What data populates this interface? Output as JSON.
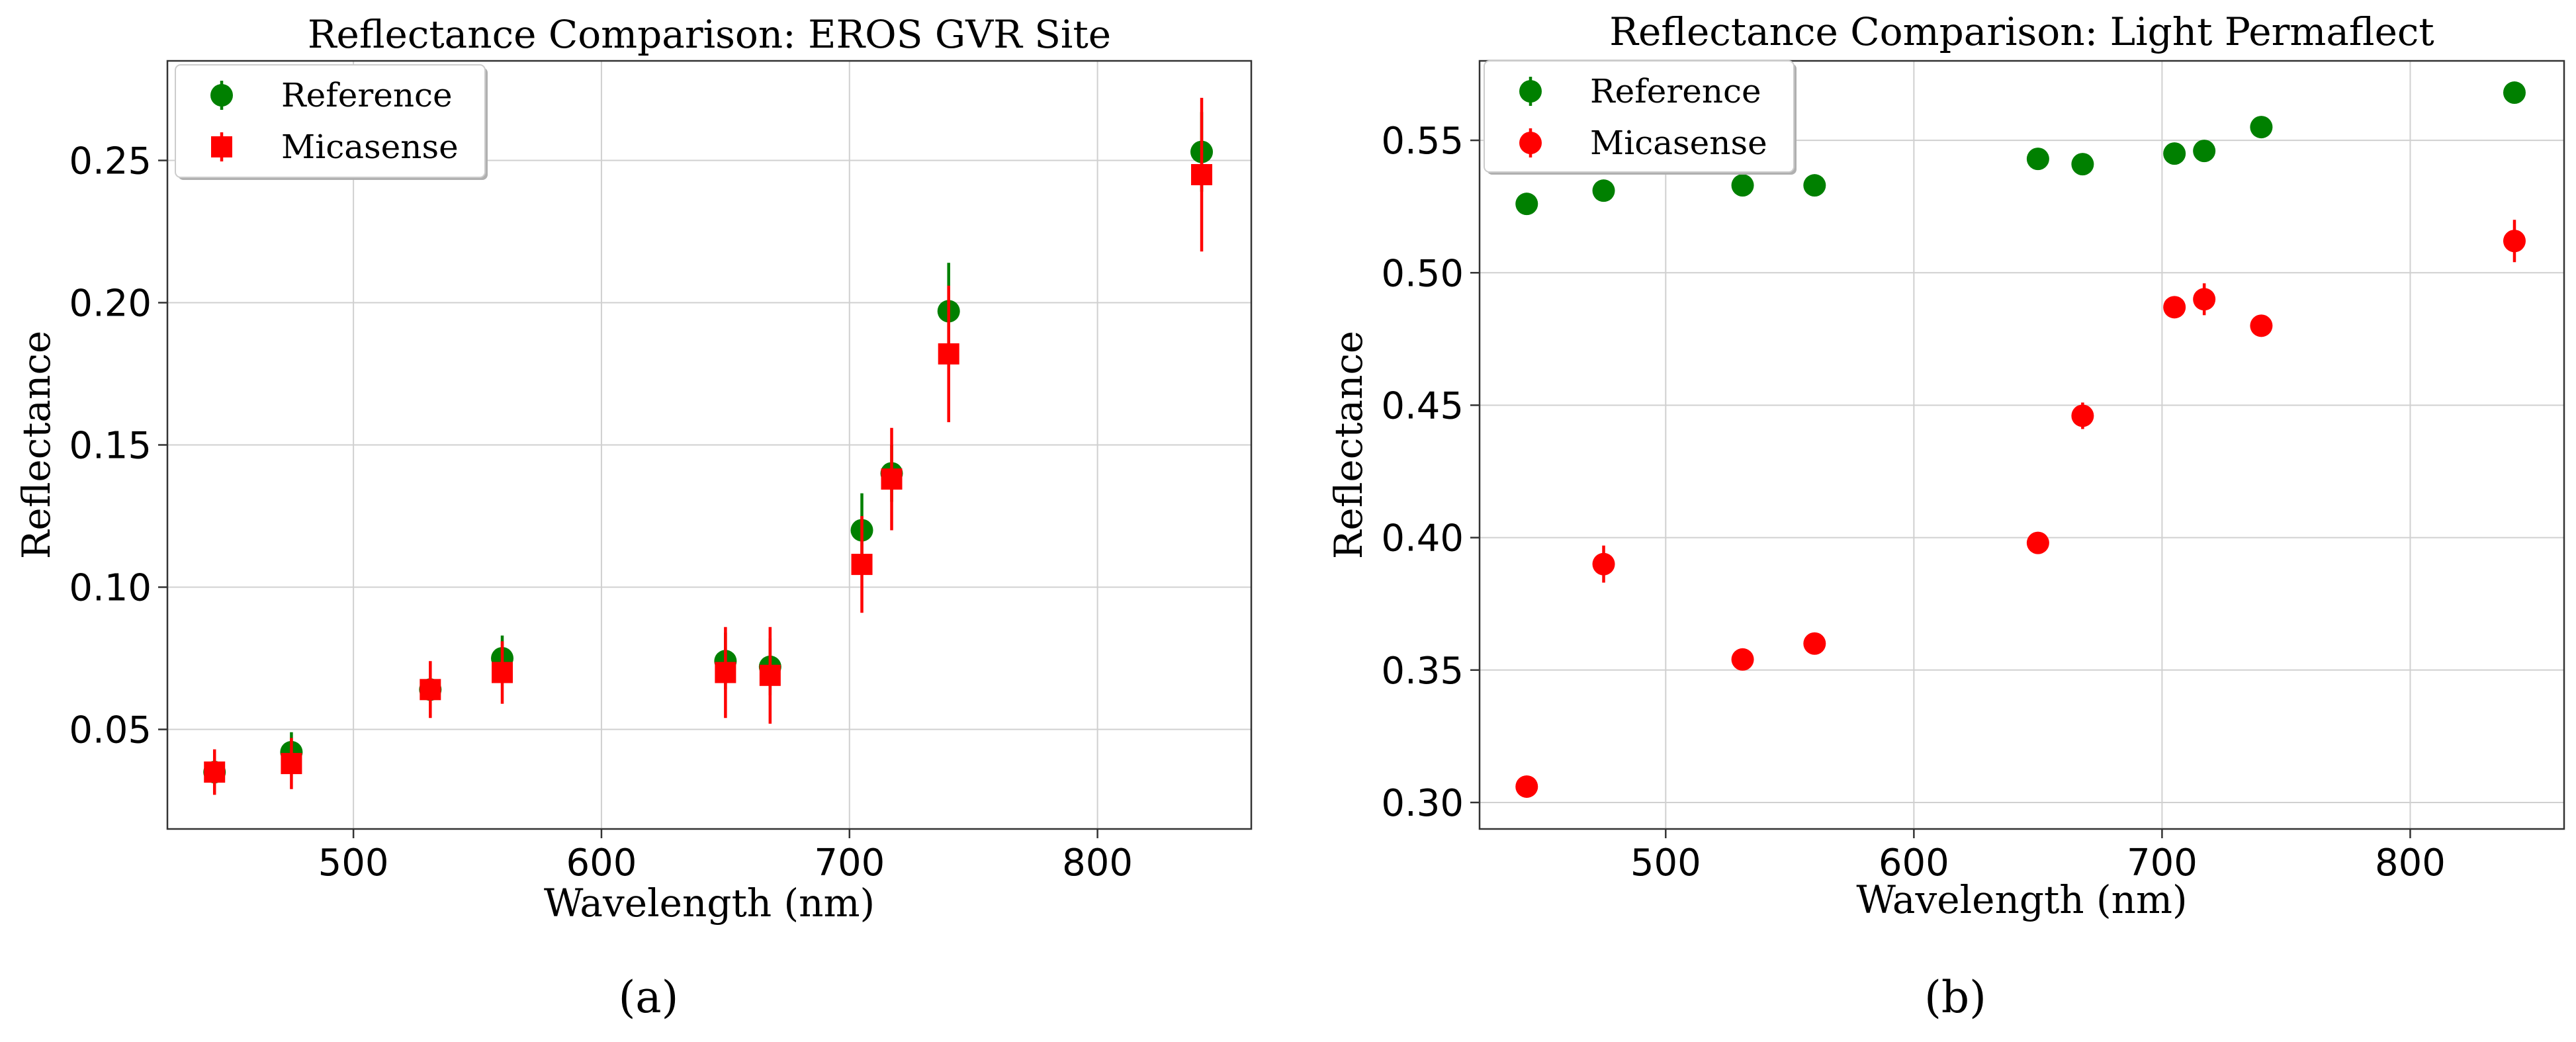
{
  "chart_data": [
    {
      "type": "scatter",
      "title": "Reflectance Comparison: EROS GVR Site",
      "xlabel": "Wavelength (nm)",
      "ylabel": "Reflectance",
      "panel_label": "(a)",
      "xlim": [
        425,
        862
      ],
      "ylim": [
        0.015,
        0.285
      ],
      "xticks": [
        500,
        600,
        700,
        800
      ],
      "xtick_labels": [
        "500",
        "600",
        "700",
        "800"
      ],
      "yticks": [
        0.05,
        0.1,
        0.15,
        0.2,
        0.25
      ],
      "ytick_labels": [
        "0.05",
        "0.10",
        "0.15",
        "0.20",
        "0.25"
      ],
      "grid": true,
      "legend_position": "top-left",
      "series": [
        {
          "name": "Reference",
          "marker": "circle",
          "color": "#008000",
          "x": [
            444,
            475,
            531,
            560,
            650,
            668,
            705,
            717,
            740,
            842
          ],
          "y": [
            0.035,
            0.042,
            0.064,
            0.075,
            0.074,
            0.072,
            0.12,
            0.14,
            0.197,
            0.253
          ],
          "err": [
            0.004,
            0.007,
            0.004,
            0.008,
            0.01,
            0.01,
            0.013,
            0.01,
            0.017,
            0.014
          ]
        },
        {
          "name": "Micasense",
          "marker": "square",
          "color": "#ff0000",
          "x": [
            444,
            475,
            531,
            560,
            650,
            668,
            705,
            717,
            740,
            842
          ],
          "y": [
            0.035,
            0.038,
            0.064,
            0.07,
            0.07,
            0.069,
            0.108,
            0.138,
            0.182,
            0.245
          ],
          "err": [
            0.008,
            0.009,
            0.01,
            0.011,
            0.016,
            0.017,
            0.017,
            0.018,
            0.024,
            0.027
          ]
        }
      ]
    },
    {
      "type": "scatter",
      "title": "Reflectance Comparison: Light Permaflect",
      "xlabel": "Wavelength (nm)",
      "ylabel": "Reflectance",
      "panel_label": "(b)",
      "xlim": [
        425,
        862
      ],
      "ylim": [
        0.29,
        0.58
      ],
      "xticks": [
        500,
        600,
        700,
        800
      ],
      "xtick_labels": [
        "500",
        "600",
        "700",
        "800"
      ],
      "yticks": [
        0.3,
        0.35,
        0.4,
        0.45,
        0.5,
        0.55
      ],
      "ytick_labels": [
        "0.30",
        "0.35",
        "0.40",
        "0.45",
        "0.50",
        "0.55"
      ],
      "grid": true,
      "legend_position": "top-left",
      "series": [
        {
          "name": "Reference",
          "marker": "circle",
          "color": "#008000",
          "x": [
            444,
            475,
            531,
            560,
            650,
            668,
            705,
            717,
            740,
            842
          ],
          "y": [
            0.526,
            0.531,
            0.533,
            0.533,
            0.543,
            0.541,
            0.545,
            0.546,
            0.555,
            0.568
          ],
          "err": [
            0.002,
            0.002,
            0.002,
            0.002,
            0.002,
            0.002,
            0.002,
            0.002,
            0.002,
            0.002
          ]
        },
        {
          "name": "Micasense",
          "marker": "circle",
          "color": "#ff0000",
          "x": [
            444,
            475,
            531,
            560,
            650,
            668,
            705,
            717,
            740,
            842
          ],
          "y": [
            0.306,
            0.39,
            0.354,
            0.36,
            0.398,
            0.446,
            0.487,
            0.49,
            0.48,
            0.512
          ],
          "err": [
            0.002,
            0.007,
            0.002,
            0.002,
            0.002,
            0.005,
            0.003,
            0.006,
            0.002,
            0.008
          ]
        }
      ]
    }
  ]
}
